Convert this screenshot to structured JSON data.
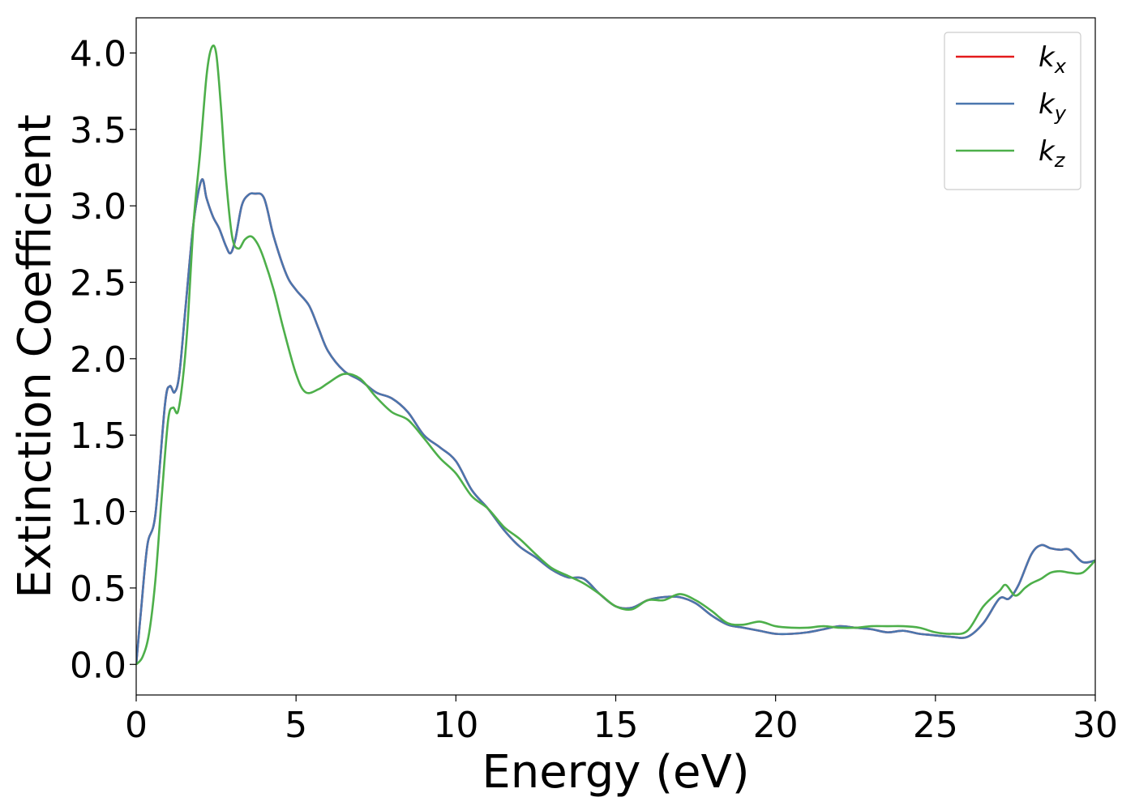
{
  "chart_data": {
    "type": "line",
    "title": "",
    "xlabel": "Energy (eV)",
    "ylabel": "Extinction Coefficient",
    "xlim": [
      0,
      30
    ],
    "ylim": [
      -0.2,
      4.23
    ],
    "x_ticks": [
      0,
      5,
      10,
      15,
      20,
      25,
      30
    ],
    "x_tick_labels": [
      "0",
      "5",
      "10",
      "15",
      "20",
      "25",
      "30"
    ],
    "y_ticks": [
      0.0,
      0.5,
      1.0,
      1.5,
      2.0,
      2.5,
      3.0,
      3.5,
      4.0
    ],
    "y_tick_labels": [
      "0.0",
      "0.5",
      "1.0",
      "1.5",
      "2.0",
      "2.5",
      "3.0",
      "3.5",
      "4.0"
    ],
    "grid": false,
    "legend_position": "top-right",
    "series": [
      {
        "name": "k_x",
        "legend_base": "k",
        "legend_sub": "x",
        "color": "#e41a1c",
        "x": [
          0,
          0.15,
          0.35,
          0.6,
          0.9,
          1.05,
          1.2,
          1.35,
          1.55,
          1.8,
          2.05,
          2.2,
          2.4,
          2.6,
          2.8,
          2.95,
          3.1,
          3.3,
          3.5,
          3.7,
          4.0,
          4.3,
          4.7,
          5.0,
          5.4,
          5.7,
          6.0,
          6.5,
          7.0,
          7.5,
          8.0,
          8.5,
          9.0,
          9.5,
          10.0,
          10.5,
          11.0,
          11.5,
          12.0,
          12.5,
          13.0,
          13.5,
          14.0,
          14.5,
          15.0,
          15.5,
          16.0,
          16.5,
          17.0,
          17.5,
          18.0,
          18.5,
          19.0,
          19.5,
          20.0,
          20.5,
          21.0,
          21.5,
          22.0,
          22.5,
          23.0,
          23.5,
          24.0,
          24.5,
          25.0,
          25.5,
          26.0,
          26.5,
          27.0,
          27.3,
          27.6,
          28.0,
          28.3,
          28.6,
          28.9,
          29.2,
          29.6,
          30.0
        ],
        "y": [
          0.0,
          0.35,
          0.78,
          0.98,
          1.7,
          1.82,
          1.78,
          1.9,
          2.35,
          2.9,
          3.17,
          3.05,
          2.93,
          2.85,
          2.74,
          2.69,
          2.78,
          3.0,
          3.07,
          3.08,
          3.05,
          2.8,
          2.55,
          2.45,
          2.35,
          2.2,
          2.05,
          1.92,
          1.86,
          1.78,
          1.74,
          1.65,
          1.5,
          1.42,
          1.33,
          1.14,
          1.02,
          0.88,
          0.77,
          0.7,
          0.62,
          0.57,
          0.56,
          0.46,
          0.38,
          0.37,
          0.42,
          0.44,
          0.44,
          0.4,
          0.32,
          0.26,
          0.24,
          0.22,
          0.2,
          0.2,
          0.21,
          0.23,
          0.25,
          0.24,
          0.23,
          0.21,
          0.22,
          0.2,
          0.19,
          0.18,
          0.18,
          0.27,
          0.43,
          0.43,
          0.52,
          0.72,
          0.78,
          0.76,
          0.75,
          0.75,
          0.67,
          0.68
        ]
      },
      {
        "name": "k_y",
        "legend_base": "k",
        "legend_sub": "y",
        "color": "#4a76ae",
        "x": [
          0,
          0.15,
          0.35,
          0.6,
          0.9,
          1.05,
          1.2,
          1.35,
          1.55,
          1.8,
          2.05,
          2.2,
          2.4,
          2.6,
          2.8,
          2.95,
          3.1,
          3.3,
          3.5,
          3.7,
          4.0,
          4.3,
          4.7,
          5.0,
          5.4,
          5.7,
          6.0,
          6.5,
          7.0,
          7.5,
          8.0,
          8.5,
          9.0,
          9.5,
          10.0,
          10.5,
          11.0,
          11.5,
          12.0,
          12.5,
          13.0,
          13.5,
          14.0,
          14.5,
          15.0,
          15.5,
          16.0,
          16.5,
          17.0,
          17.5,
          18.0,
          18.5,
          19.0,
          19.5,
          20.0,
          20.5,
          21.0,
          21.5,
          22.0,
          22.5,
          23.0,
          23.5,
          24.0,
          24.5,
          25.0,
          25.5,
          26.0,
          26.5,
          27.0,
          27.3,
          27.6,
          28.0,
          28.3,
          28.6,
          28.9,
          29.2,
          29.6,
          30.0
        ],
        "y": [
          0.0,
          0.35,
          0.78,
          0.98,
          1.7,
          1.82,
          1.78,
          1.9,
          2.35,
          2.9,
          3.17,
          3.05,
          2.93,
          2.85,
          2.74,
          2.69,
          2.78,
          3.0,
          3.07,
          3.08,
          3.05,
          2.8,
          2.55,
          2.45,
          2.35,
          2.2,
          2.05,
          1.92,
          1.86,
          1.78,
          1.74,
          1.65,
          1.5,
          1.42,
          1.33,
          1.14,
          1.02,
          0.88,
          0.77,
          0.7,
          0.62,
          0.57,
          0.56,
          0.46,
          0.38,
          0.37,
          0.42,
          0.44,
          0.44,
          0.4,
          0.32,
          0.26,
          0.24,
          0.22,
          0.2,
          0.2,
          0.21,
          0.23,
          0.25,
          0.24,
          0.23,
          0.21,
          0.22,
          0.2,
          0.19,
          0.18,
          0.18,
          0.27,
          0.43,
          0.43,
          0.52,
          0.72,
          0.78,
          0.76,
          0.75,
          0.75,
          0.67,
          0.68
        ]
      },
      {
        "name": "k_z",
        "legend_base": "k",
        "legend_sub": "z",
        "color": "#4daf4a",
        "x": [
          0,
          0.2,
          0.4,
          0.6,
          0.8,
          1.0,
          1.15,
          1.3,
          1.45,
          1.6,
          1.8,
          2.0,
          2.2,
          2.35,
          2.5,
          2.65,
          2.8,
          3.0,
          3.2,
          3.4,
          3.6,
          3.8,
          4.0,
          4.3,
          4.6,
          5.0,
          5.3,
          5.7,
          6.0,
          6.5,
          7.0,
          7.5,
          8.0,
          8.5,
          9.0,
          9.5,
          10.0,
          10.5,
          11.0,
          11.5,
          12.0,
          12.5,
          13.0,
          13.5,
          14.0,
          14.5,
          15.0,
          15.5,
          16.0,
          16.5,
          17.0,
          17.5,
          18.0,
          18.5,
          19.0,
          19.5,
          20.0,
          20.5,
          21.0,
          21.5,
          22.0,
          22.5,
          23.0,
          23.5,
          24.0,
          24.5,
          25.0,
          25.5,
          26.0,
          26.5,
          27.0,
          27.2,
          27.5,
          27.8,
          28.0,
          28.3,
          28.6,
          28.9,
          29.2,
          29.6,
          30.0
        ],
        "y": [
          0.0,
          0.05,
          0.2,
          0.55,
          1.1,
          1.6,
          1.68,
          1.65,
          1.85,
          2.2,
          2.9,
          3.35,
          3.85,
          4.03,
          4.0,
          3.65,
          3.2,
          2.8,
          2.72,
          2.78,
          2.8,
          2.75,
          2.65,
          2.45,
          2.2,
          1.9,
          1.78,
          1.8,
          1.84,
          1.9,
          1.87,
          1.75,
          1.65,
          1.6,
          1.48,
          1.35,
          1.25,
          1.1,
          1.02,
          0.9,
          0.82,
          0.72,
          0.63,
          0.58,
          0.53,
          0.46,
          0.38,
          0.36,
          0.42,
          0.42,
          0.46,
          0.42,
          0.35,
          0.27,
          0.26,
          0.28,
          0.25,
          0.24,
          0.24,
          0.25,
          0.24,
          0.24,
          0.25,
          0.25,
          0.25,
          0.24,
          0.21,
          0.2,
          0.22,
          0.38,
          0.48,
          0.52,
          0.45,
          0.5,
          0.53,
          0.56,
          0.6,
          0.61,
          0.6,
          0.6,
          0.68
        ]
      }
    ]
  }
}
